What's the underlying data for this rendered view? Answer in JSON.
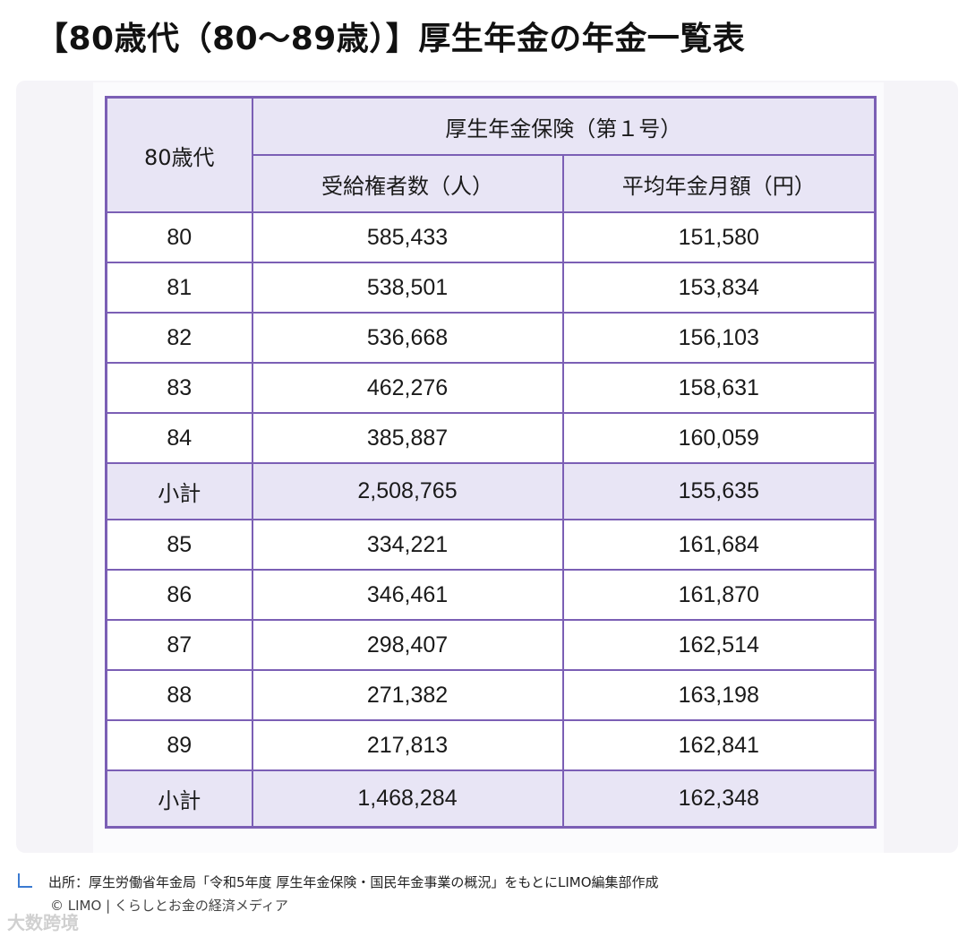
{
  "title": "【80歳代（80〜89歳）】厚生年金の年金一覧表",
  "table": {
    "corner_label": "80歳代",
    "group_header": "厚生年金保険（第１号）",
    "col_headers": [
      "受給権者数（人）",
      "平均年金月額（円）"
    ],
    "rows": [
      {
        "age": "80",
        "recipients": "585,433",
        "average": "151,580"
      },
      {
        "age": "81",
        "recipients": "538,501",
        "average": "153,834"
      },
      {
        "age": "82",
        "recipients": "536,668",
        "average": "156,103"
      },
      {
        "age": "83",
        "recipients": "462,276",
        "average": "158,631"
      },
      {
        "age": "84",
        "recipients": "385,887",
        "average": "160,059"
      },
      {
        "age": "小計",
        "recipients": "2,508,765",
        "average": "155,635"
      },
      {
        "age": "85",
        "recipients": "334,221",
        "average": "161,684"
      },
      {
        "age": "86",
        "recipients": "346,461",
        "average": "161,870"
      },
      {
        "age": "87",
        "recipients": "298,407",
        "average": "162,514"
      },
      {
        "age": "88",
        "recipients": "271,382",
        "average": "163,198"
      },
      {
        "age": "89",
        "recipients": "217,813",
        "average": "162,841"
      },
      {
        "age": "小計",
        "recipients": "1,468,284",
        "average": "162,348"
      }
    ]
  },
  "source_text": "出所：厚生労働省年金局「令和5年度 厚生年金保険・国民年金事業の概況」をもとにLIMO編集部作成",
  "copyright_text": "© LIMO | くらしとお金の経済メディア",
  "watermark_text": "大数跨境",
  "colors": {
    "border": "#7b5fb5",
    "header_fill": "#e8e5f5",
    "source_mark": "#3b7ad1"
  }
}
